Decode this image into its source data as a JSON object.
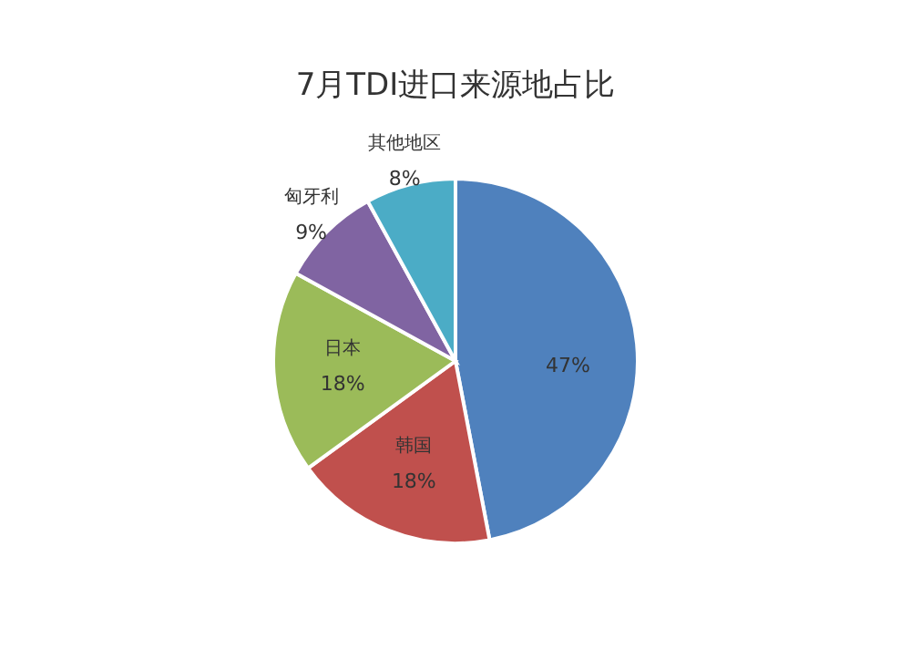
{
  "chart_data": {
    "type": "pie",
    "title": "7月TDI进口来源地占比",
    "categories": [
      null,
      "韩国",
      "日本",
      "匈牙利",
      "其他地区"
    ],
    "values": [
      47,
      18,
      18,
      9,
      8
    ],
    "colors": [
      "#4f81bd",
      "#c0504d",
      "#9bbb59",
      "#8064a2",
      "#4bacc6"
    ],
    "value_labels": [
      "47%",
      "18%",
      "18%",
      "9%",
      "8%"
    ]
  }
}
